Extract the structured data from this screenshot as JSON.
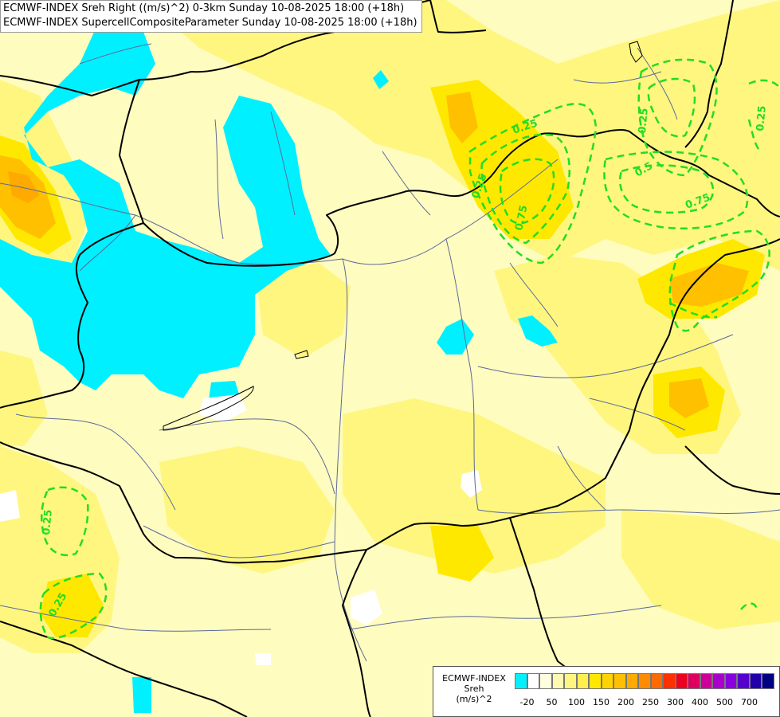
{
  "title_lines": [
    "ECMWF-INDEX Sreh Right ((m/s)^2) 0-3km Sunday 10-08-2025 18:00 (+18h)",
    "ECMWF-INDEX SupercellCompositeParameter Sunday 10-08-2025 18:00 (+18h)"
  ],
  "legend": {
    "title_lines": [
      "ECMWF-INDEX",
      "Sreh",
      "(m/s)^2"
    ],
    "swatch_colors": [
      "#00f0ff",
      "#ffffff",
      "#fffde0",
      "#fffab0",
      "#fff680",
      "#fff050",
      "#ffe800",
      "#ffd400",
      "#ffc000",
      "#ffaa00",
      "#ff8c00",
      "#ff6a00",
      "#ff3000",
      "#ee0020",
      "#dd0060",
      "#cc0099",
      "#aa00cc",
      "#8800dd",
      "#5500cc",
      "#2200aa",
      "#000080"
    ],
    "tick_labels": [
      "-20",
      "50",
      "100",
      "150",
      "200",
      "250",
      "300",
      "400",
      "500",
      "700"
    ]
  },
  "contour_labels": [
    {
      "text": "0.25"
    },
    {
      "text": "0.5"
    },
    {
      "text": "0.75"
    },
    {
      "text": "0.75"
    },
    {
      "text": "0.25"
    },
    {
      "text": "0.25"
    },
    {
      "text": "0.25"
    },
    {
      "text": "0.25"
    },
    {
      "text": "0.25"
    }
  ],
  "colors": {
    "negative_sreh": "#00f0ff",
    "contour": "#22dd22",
    "border": "#000000",
    "river": "#5a6a9a"
  }
}
